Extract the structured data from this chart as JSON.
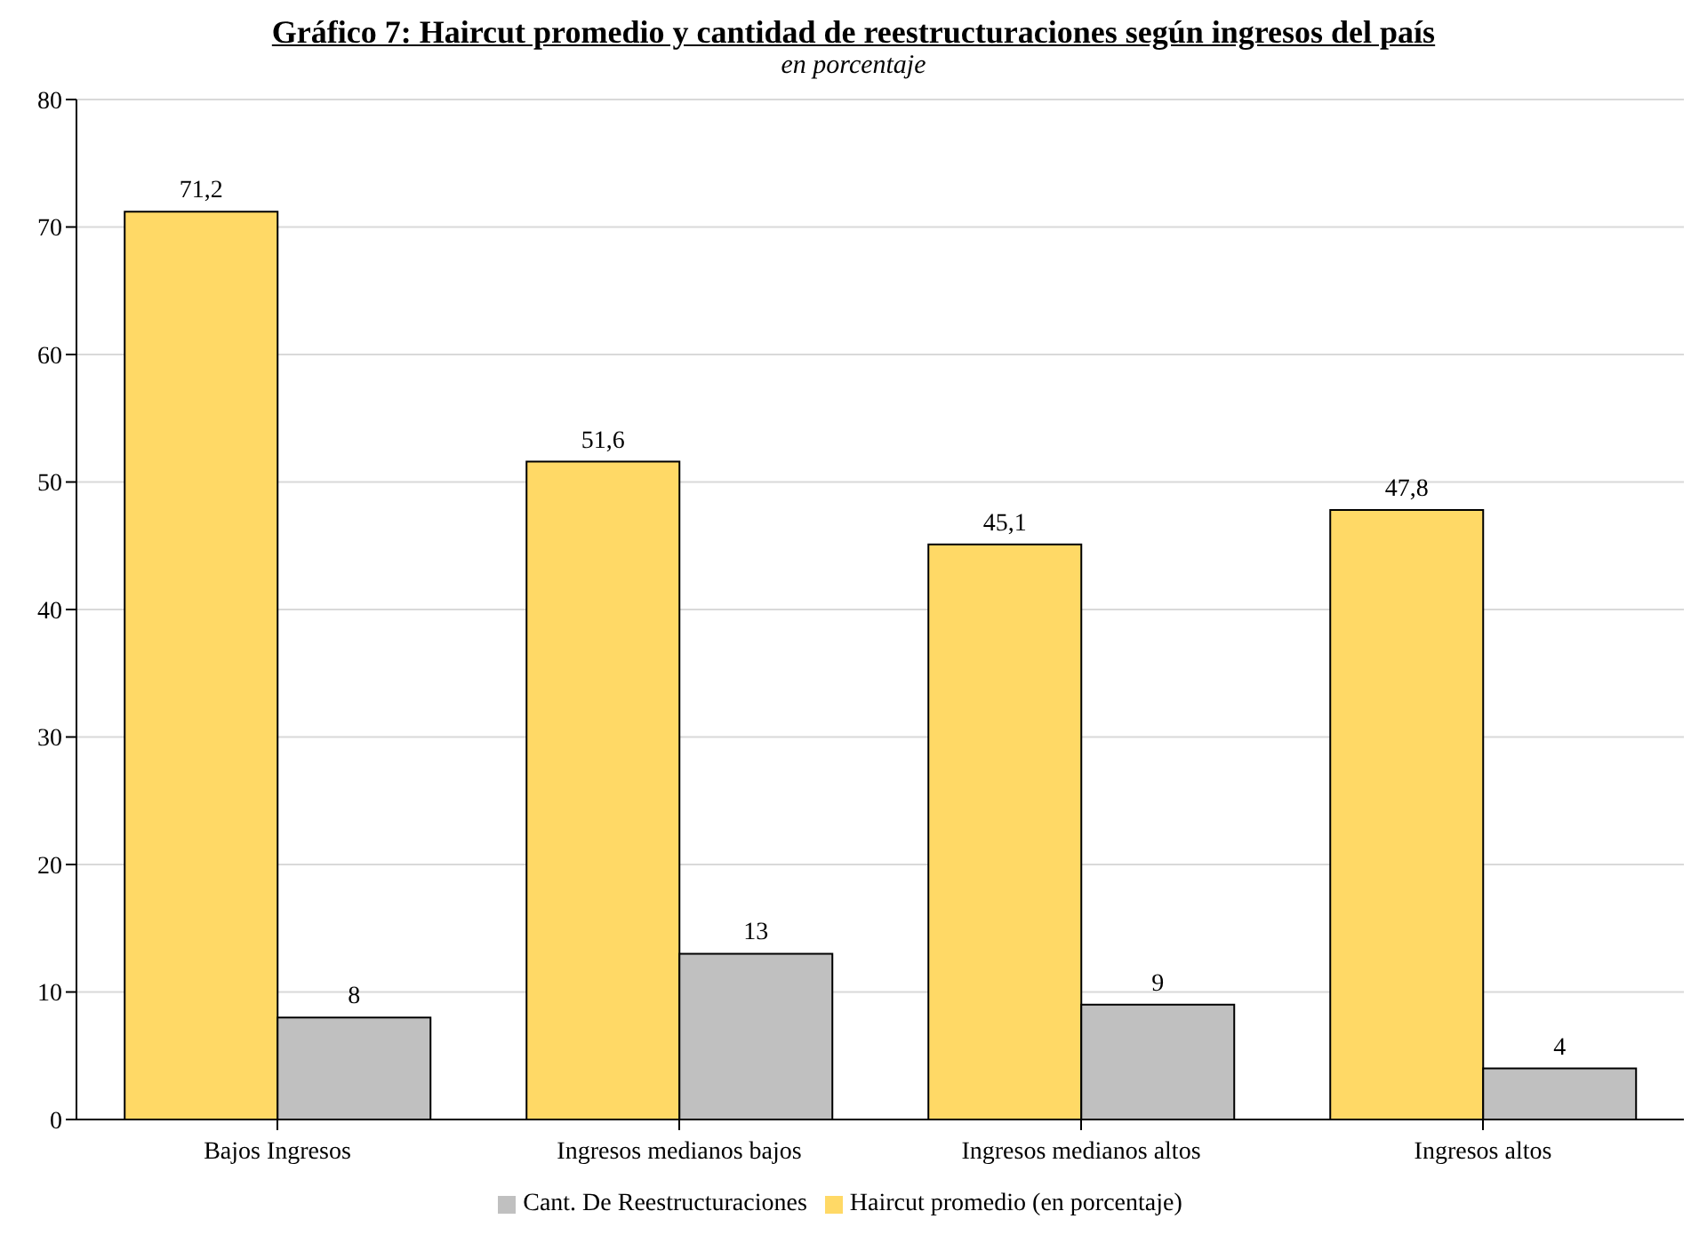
{
  "chart_data": {
    "type": "bar",
    "title": "Gráfico 7: Haircut promedio y cantidad de reestructuraciones según ingresos del país",
    "subtitle": "en porcentaje",
    "categories": [
      "Bajos Ingresos",
      "Ingresos medianos bajos",
      "Ingresos medianos altos",
      "Ingresos altos"
    ],
    "series": [
      {
        "name": "Haircut promedio (en porcentaje)",
        "color": "#ffd966",
        "values": [
          71.2,
          51.6,
          45.1,
          47.8
        ],
        "value_labels": [
          "71,2",
          "51,6",
          "45,1",
          "47,8"
        ]
      },
      {
        "name": "Cant. De Reestructuraciones",
        "color": "#c0c0c0",
        "values": [
          8,
          13,
          9,
          4
        ],
        "value_labels": [
          "8",
          "13",
          "9",
          "4"
        ]
      }
    ],
    "ylim": [
      0,
      80
    ],
    "yticks": [
      0,
      10,
      20,
      30,
      40,
      50,
      60,
      70,
      80
    ],
    "grid": "y",
    "legend": "bottom"
  }
}
